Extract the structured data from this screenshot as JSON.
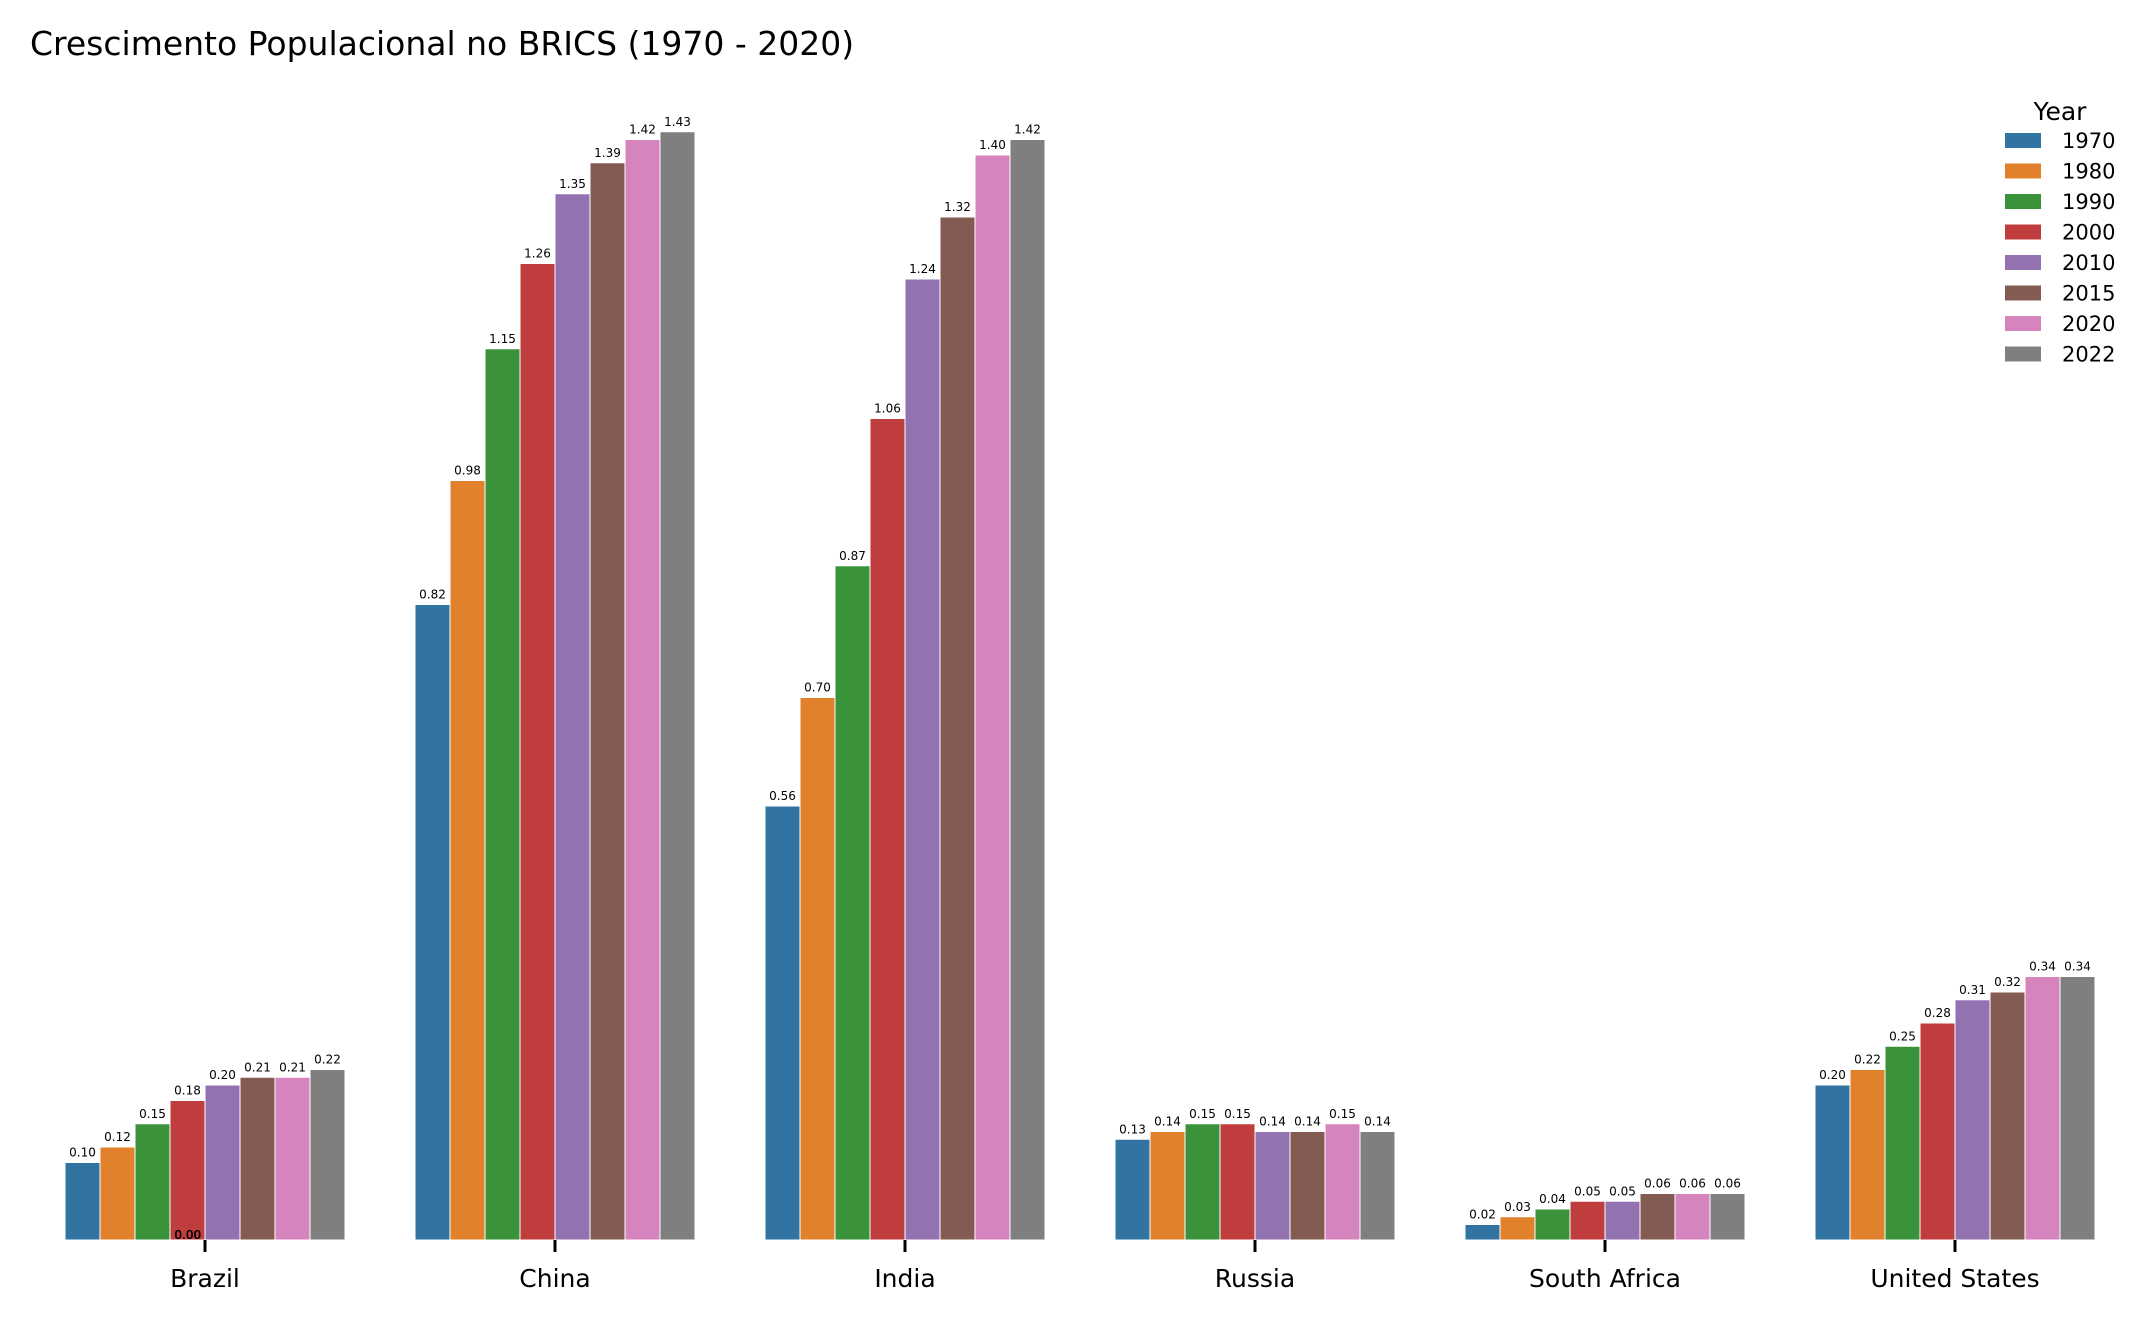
{
  "chart_data": {
    "type": "bar",
    "title": "Crescimento Populacional no BRICS (1970 - 2020)",
    "xlabel": "",
    "ylabel": "",
    "categories": [
      "Brazil",
      "China",
      "India",
      "Russia",
      "South Africa",
      "United States"
    ],
    "ylim": [
      0,
      1.5
    ],
    "grid": false,
    "legend": {
      "title": "Year",
      "placement": "top-right"
    },
    "series": [
      {
        "name": "1970",
        "color": "#3274a1",
        "values": [
          0.1,
          0.82,
          0.56,
          0.13,
          0.02,
          0.2
        ]
      },
      {
        "name": "1980",
        "color": "#e1812c",
        "values": [
          0.12,
          0.98,
          0.7,
          0.14,
          0.03,
          0.22
        ]
      },
      {
        "name": "1990",
        "color": "#3a923a",
        "values": [
          0.15,
          1.15,
          0.87,
          0.15,
          0.04,
          0.25
        ]
      },
      {
        "name": "2000",
        "color": "#c03d3e",
        "values": [
          0.18,
          1.26,
          1.06,
          0.15,
          0.05,
          0.28
        ]
      },
      {
        "name": "2010",
        "color": "#9372b2",
        "values": [
          0.2,
          1.35,
          1.24,
          0.14,
          0.05,
          0.31
        ]
      },
      {
        "name": "2015",
        "color": "#845b53",
        "values": [
          0.21,
          1.39,
          1.32,
          0.14,
          0.06,
          0.32
        ]
      },
      {
        "name": "2020",
        "color": "#d684bd",
        "values": [
          0.21,
          1.42,
          1.4,
          0.15,
          0.06,
          0.34
        ]
      },
      {
        "name": "2022",
        "color": "#7f7f7f",
        "values": [
          0.22,
          1.43,
          1.42,
          0.14,
          0.06,
          0.34
        ]
      }
    ],
    "annotations": [
      "0.00",
      "0.00"
    ]
  }
}
